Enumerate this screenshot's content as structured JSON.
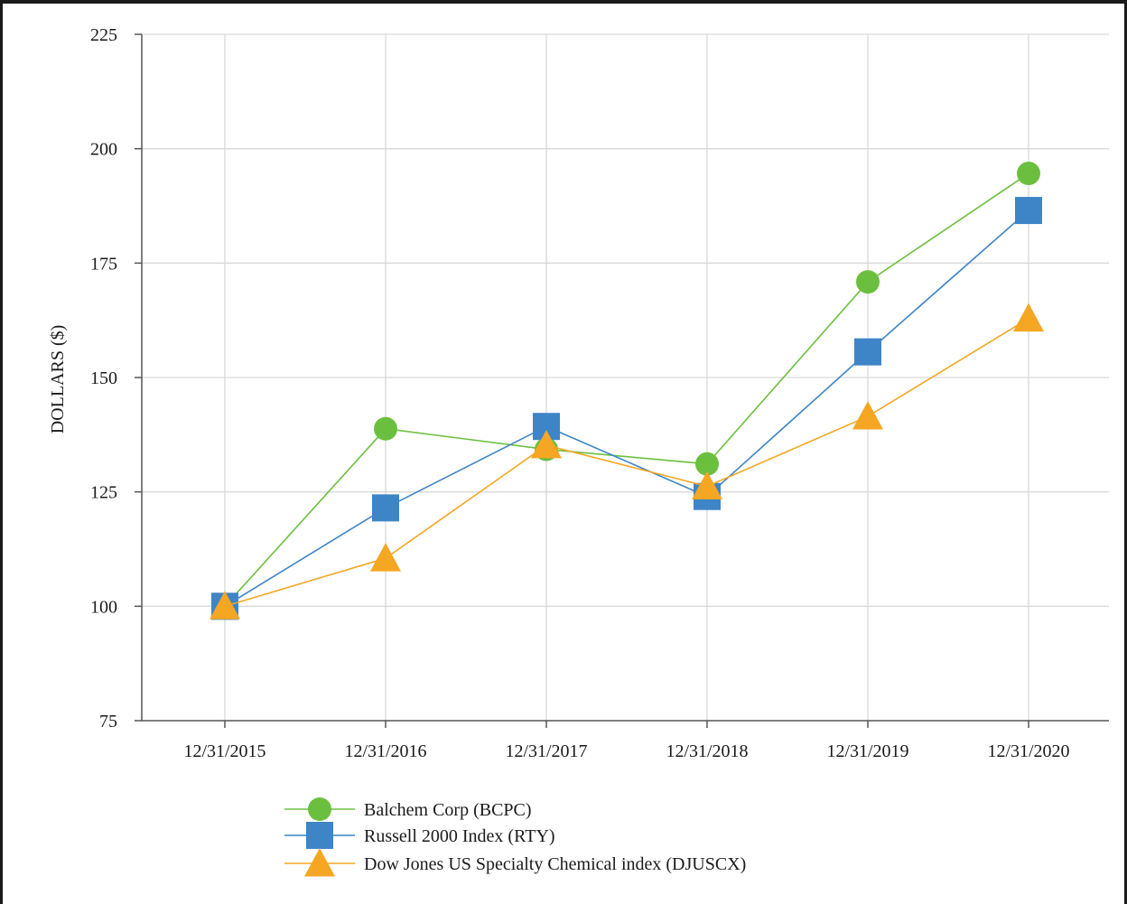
{
  "chart_data": {
    "type": "line",
    "title": "",
    "xlabel": "",
    "ylabel": "DOLLARS ($)",
    "categories": [
      "12/31/2015",
      "12/31/2016",
      "12/31/2017",
      "12/31/2018",
      "12/31/2019",
      "12/31/2020"
    ],
    "ylim": [
      75,
      225
    ],
    "yticks": [
      "75",
      "100",
      "125",
      "150",
      "175",
      "200",
      "225"
    ],
    "grid": true,
    "legend_placement": "bottom-center",
    "series": [
      {
        "name": "Balchem Corp (BCPC)",
        "marker": "circle",
        "color": "#6bbf3e",
        "values": [
          100,
          138.8,
          134.3,
          131.1,
          170.9,
          194.6
        ]
      },
      {
        "name": "Russell 2000 Index (RTY)",
        "marker": "square",
        "color": "#3d85c6",
        "values": [
          100,
          121.5,
          139.3,
          124.0,
          155.6,
          186.5
        ]
      },
      {
        "name": "Dow Jones US Specialty Chemical index (DJUSCX)",
        "marker": "triangle",
        "color": "#f5a623",
        "values": [
          100,
          110.5,
          135.2,
          126.2,
          141.5,
          162.9
        ]
      }
    ]
  }
}
